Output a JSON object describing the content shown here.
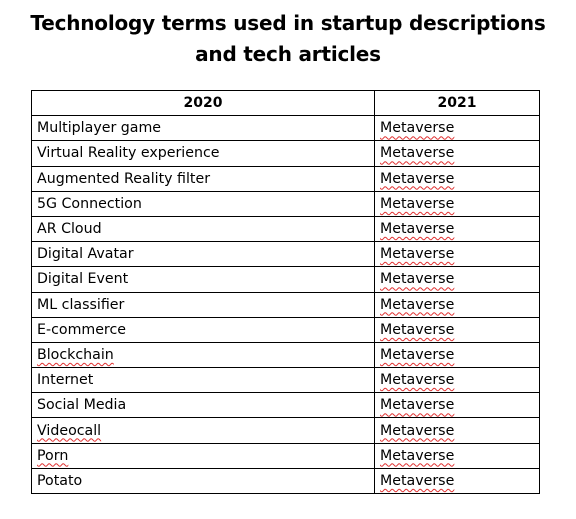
{
  "document": {
    "title_line1": "Technology terms used in startup descriptions",
    "title_line2": "and tech articles"
  },
  "table": {
    "headers": [
      "2020",
      "2021"
    ],
    "rows": [
      [
        "Multiplayer game",
        "Metaverse"
      ],
      [
        "Virtual Reality experience",
        "Metaverse"
      ],
      [
        "Augmented Reality filter",
        "Metaverse"
      ],
      [
        "5G Connection",
        "Metaverse"
      ],
      [
        "AR Cloud",
        "Metaverse"
      ],
      [
        "Digital Avatar",
        "Metaverse"
      ],
      [
        "Digital Event",
        "Metaverse"
      ],
      [
        "ML classifier",
        "Metaverse"
      ],
      [
        "E-commerce",
        "Metaverse"
      ],
      [
        "Blockchain",
        "Metaverse"
      ],
      [
        "Internet",
        "Metaverse"
      ],
      [
        "Social Media",
        "Metaverse"
      ],
      [
        "Videocall",
        "Metaverse"
      ],
      [
        "Porn",
        "Metaverse"
      ],
      [
        "Potato",
        "Metaverse"
      ]
    ]
  }
}
